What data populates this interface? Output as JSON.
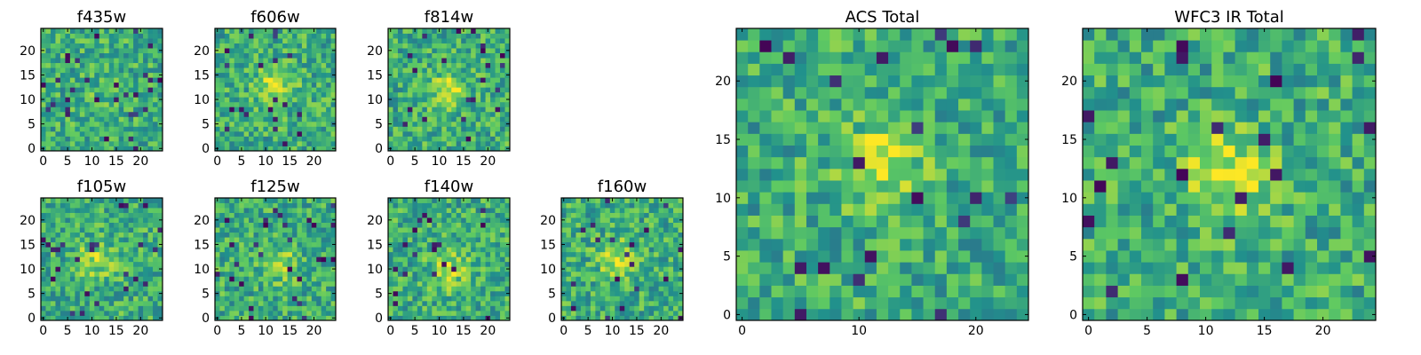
{
  "chart_data": [
    {
      "type": "heatmap",
      "title": "f435w",
      "grid_size": 25,
      "xlim": [
        0,
        24
      ],
      "ylim": [
        0,
        24
      ],
      "x_ticks": [
        0,
        5,
        10,
        15,
        20
      ],
      "y_ticks": [
        0,
        5,
        10,
        15,
        20
      ],
      "peak": [
        12,
        12
      ],
      "blob_strength": 0.1,
      "noise_seed": 3
    },
    {
      "type": "heatmap",
      "title": "f606w",
      "grid_size": 25,
      "xlim": [
        0,
        24
      ],
      "ylim": [
        0,
        24
      ],
      "x_ticks": [
        0,
        5,
        10,
        15,
        20
      ],
      "y_ticks": [
        0,
        5,
        10,
        15,
        20
      ],
      "peak": [
        12,
        13
      ],
      "blob_strength": 0.55,
      "noise_seed": 11
    },
    {
      "type": "heatmap",
      "title": "f814w",
      "grid_size": 25,
      "xlim": [
        0,
        24
      ],
      "ylim": [
        0,
        24
      ],
      "x_ticks": [
        0,
        5,
        10,
        15,
        20
      ],
      "y_ticks": [
        0,
        5,
        10,
        15,
        20
      ],
      "peak": [
        12,
        12
      ],
      "blob_strength": 0.55,
      "noise_seed": 17
    },
    {
      "type": "heatmap",
      "title": "f105w",
      "grid_size": 25,
      "xlim": [
        0,
        24
      ],
      "ylim": [
        0,
        24
      ],
      "x_ticks": [
        0,
        5,
        10,
        15,
        20
      ],
      "y_ticks": [
        0,
        5,
        10,
        15,
        20
      ],
      "peak": [
        11,
        12
      ],
      "blob_strength": 0.5,
      "noise_seed": 23
    },
    {
      "type": "heatmap",
      "title": "f125w",
      "grid_size": 25,
      "xlim": [
        0,
        24
      ],
      "ylim": [
        0,
        24
      ],
      "x_ticks": [
        0,
        5,
        10,
        15,
        20
      ],
      "y_ticks": [
        0,
        5,
        10,
        15,
        20
      ],
      "peak": [
        13,
        11
      ],
      "blob_strength": 0.4,
      "noise_seed": 29
    },
    {
      "type": "heatmap",
      "title": "f140w",
      "grid_size": 25,
      "xlim": [
        0,
        24
      ],
      "ylim": [
        0,
        24
      ],
      "x_ticks": [
        0,
        5,
        10,
        15,
        20
      ],
      "y_ticks": [
        0,
        5,
        10,
        15,
        20
      ],
      "peak": [
        12,
        10
      ],
      "blob_strength": 0.5,
      "noise_seed": 37
    },
    {
      "type": "heatmap",
      "title": "f160w",
      "grid_size": 25,
      "xlim": [
        0,
        24
      ],
      "ylim": [
        0,
        24
      ],
      "x_ticks": [
        0,
        5,
        10,
        15,
        20
      ],
      "y_ticks": [
        0,
        5,
        10,
        15,
        20
      ],
      "peak": [
        11,
        12
      ],
      "blob_strength": 0.55,
      "noise_seed": 41
    },
    {
      "type": "heatmap",
      "title": "ACS Total",
      "grid_size": 25,
      "xlim": [
        0,
        24
      ],
      "ylim": [
        0,
        24
      ],
      "x_ticks": [
        0,
        10,
        20
      ],
      "y_ticks": [
        0,
        5,
        10,
        15,
        20
      ],
      "peak": [
        12,
        13
      ],
      "blob_strength": 0.55,
      "noise_seed": 53
    },
    {
      "type": "heatmap",
      "title": "WFC3 IR Total",
      "grid_size": 25,
      "xlim": [
        0,
        24
      ],
      "ylim": [
        0,
        24
      ],
      "x_ticks": [
        0,
        5,
        10,
        15,
        20
      ],
      "y_ticks": [
        0,
        5,
        10,
        15,
        20
      ],
      "peak": [
        12,
        12
      ],
      "blob_strength": 0.65,
      "noise_seed": 61
    }
  ],
  "colormap": [
    "#440154",
    "#3b528b",
    "#21918c",
    "#5ec962",
    "#fde725"
  ]
}
